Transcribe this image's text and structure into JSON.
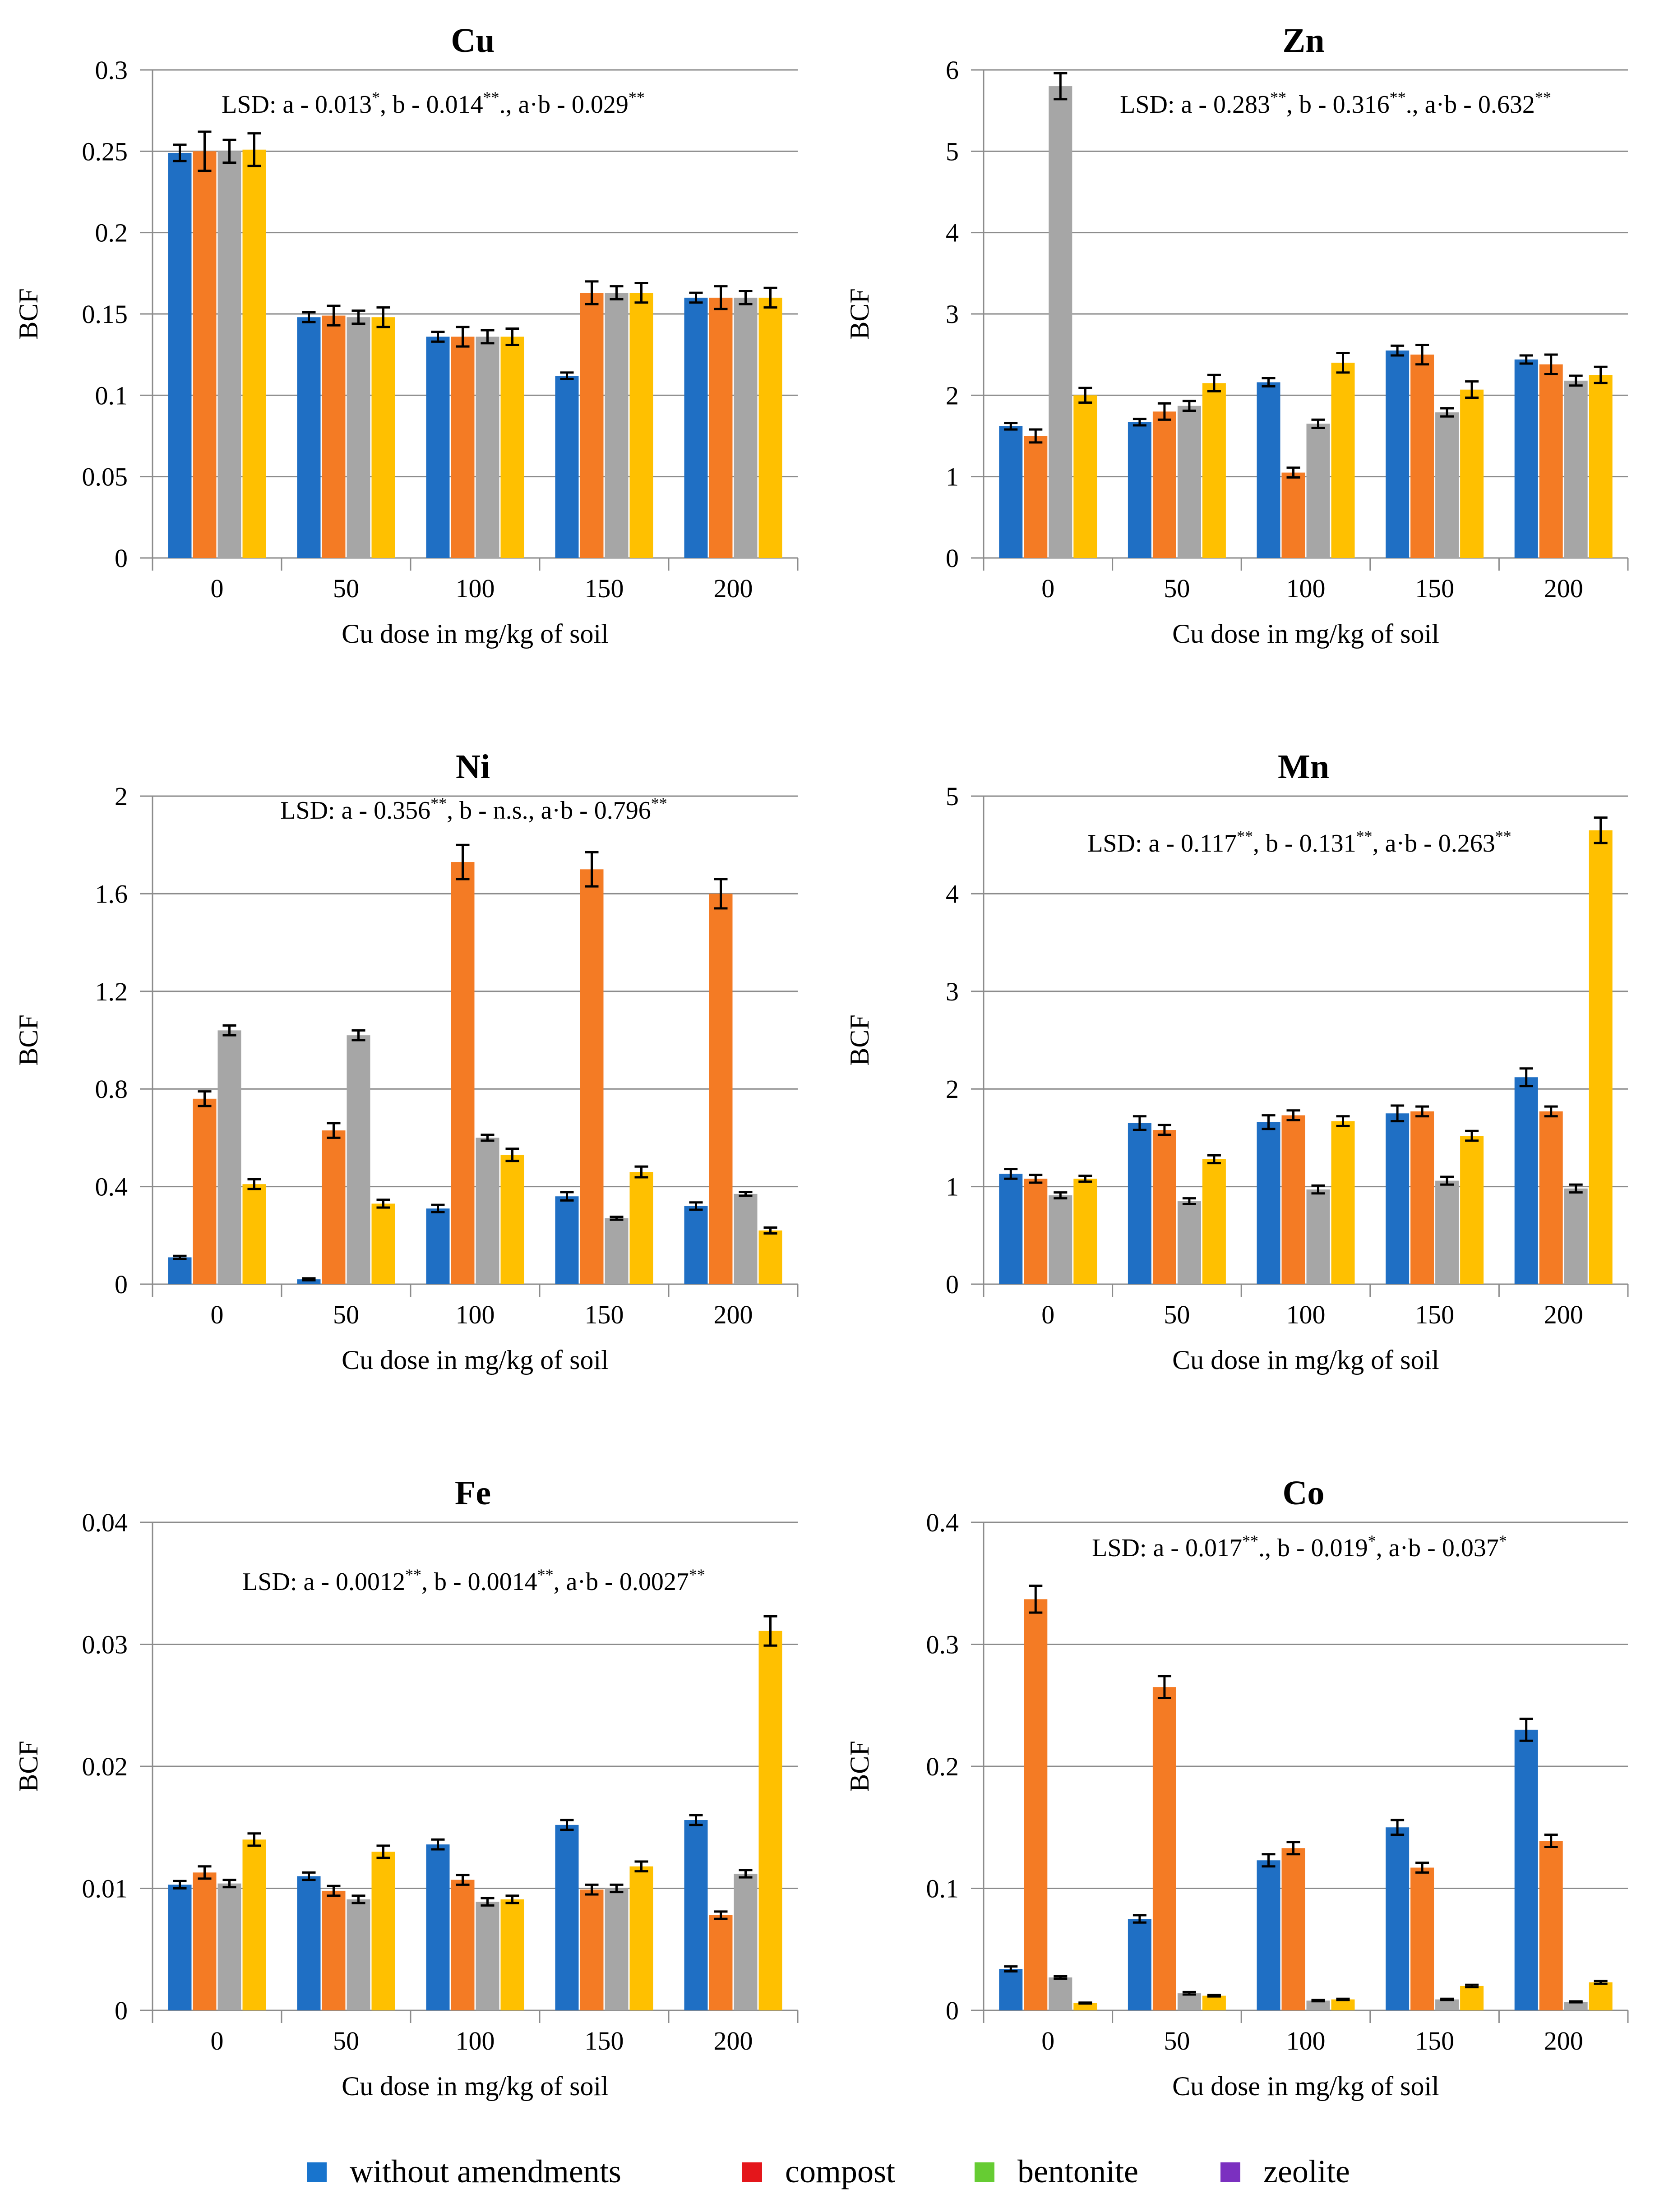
{
  "legend": {
    "items": [
      {
        "label": "without amendments",
        "swatch_color": "#1874CD"
      },
      {
        "label": "compost",
        "swatch_color": "#E4161B"
      },
      {
        "label": "bentonite",
        "swatch_color": "#66CC33"
      },
      {
        "label": "zeolite",
        "swatch_color": "#7B30C0"
      }
    ]
  },
  "series_colors": [
    "#1F6FC4",
    "#F47B24",
    "#A6A6A6",
    "#FFC000"
  ],
  "chart_data": [
    {
      "type": "bar",
      "title": "Cu",
      "xlabel": "Cu dose in mg/kg of soil",
      "ylabel": "BCF",
      "ylim": [
        0,
        0.3
      ],
      "yticks": [
        "0",
        "0.05",
        "0.1",
        "0.15",
        "0.2",
        "0.25",
        "0.3"
      ],
      "categories": [
        "0",
        "50",
        "100",
        "150",
        "200"
      ],
      "lsd": [
        {
          "text": "LSD: a - 0.013"
        },
        {
          "text": "*",
          "sup": true
        },
        {
          "text": ", b - 0.014"
        },
        {
          "text": "**",
          "sup": true
        },
        {
          "text": "., a·b - 0.029"
        },
        {
          "text": "**",
          "sup": true
        }
      ],
      "series": [
        {
          "name": "without amendments",
          "values": [
            0.249,
            0.148,
            0.136,
            0.112,
            0.16
          ],
          "errors": [
            0.005,
            0.003,
            0.003,
            0.002,
            0.003
          ]
        },
        {
          "name": "compost",
          "values": [
            0.25,
            0.149,
            0.136,
            0.163,
            0.16
          ],
          "errors": [
            0.012,
            0.006,
            0.006,
            0.007,
            0.007
          ]
        },
        {
          "name": "bentonite",
          "values": [
            0.25,
            0.148,
            0.136,
            0.163,
            0.16
          ],
          "errors": [
            0.007,
            0.004,
            0.004,
            0.004,
            0.004
          ]
        },
        {
          "name": "zeolite",
          "values": [
            0.251,
            0.148,
            0.136,
            0.163,
            0.16
          ],
          "errors": [
            0.01,
            0.006,
            0.005,
            0.006,
            0.006
          ]
        }
      ]
    },
    {
      "type": "bar",
      "title": "Zn",
      "xlabel": "Cu dose in mg/kg of soil",
      "ylabel": "BCF",
      "ylim": [
        0,
        6
      ],
      "yticks": [
        "0",
        "1",
        "2",
        "3",
        "4",
        "5",
        "6"
      ],
      "categories": [
        "0",
        "50",
        "100",
        "150",
        "200"
      ],
      "lsd": [
        {
          "text": "LSD: a - 0.283"
        },
        {
          "text": "**",
          "sup": true
        },
        {
          "text": ", b - 0.316"
        },
        {
          "text": "**",
          "sup": true
        },
        {
          "text": "., a·b - 0.632"
        },
        {
          "text": "**",
          "sup": true
        }
      ],
      "series": [
        {
          "name": "without amendments",
          "values": [
            1.62,
            1.67,
            2.16,
            2.55,
            2.44
          ],
          "errors": [
            0.04,
            0.04,
            0.05,
            0.06,
            0.05
          ]
        },
        {
          "name": "compost",
          "values": [
            1.5,
            1.8,
            1.05,
            2.5,
            2.38
          ],
          "errors": [
            0.08,
            0.1,
            0.06,
            0.12,
            0.12
          ]
        },
        {
          "name": "bentonite",
          "values": [
            5.8,
            1.87,
            1.65,
            1.79,
            2.18
          ],
          "errors": [
            0.16,
            0.06,
            0.05,
            0.05,
            0.06
          ]
        },
        {
          "name": "zeolite",
          "values": [
            2.0,
            2.15,
            2.4,
            2.07,
            2.25
          ],
          "errors": [
            0.09,
            0.1,
            0.12,
            0.1,
            0.1
          ]
        }
      ]
    },
    {
      "type": "bar",
      "title": "Ni",
      "xlabel": "Cu dose in mg/kg of soil",
      "ylabel": "BCF",
      "ylim": [
        0,
        2
      ],
      "yticks": [
        "0",
        "0.4",
        "0.8",
        "1.2",
        "1.6",
        "2"
      ],
      "categories": [
        "0",
        "50",
        "100",
        "150",
        "200"
      ],
      "lsd": [
        {
          "text": "LSD: a - 0.356"
        },
        {
          "text": "**",
          "sup": true
        },
        {
          "text": ", b - n.s., a·b - 0.796"
        },
        {
          "text": "**",
          "sup": true
        }
      ],
      "series": [
        {
          "name": "without amendments",
          "values": [
            0.11,
            0.02,
            0.31,
            0.36,
            0.32
          ],
          "errors": [
            0.006,
            0.004,
            0.015,
            0.017,
            0.015
          ]
        },
        {
          "name": "compost",
          "values": [
            0.76,
            0.63,
            1.73,
            1.7,
            1.6
          ],
          "errors": [
            0.03,
            0.03,
            0.07,
            0.07,
            0.06
          ]
        },
        {
          "name": "bentonite",
          "values": [
            1.04,
            1.02,
            0.6,
            0.27,
            0.37
          ],
          "errors": [
            0.02,
            0.02,
            0.012,
            0.006,
            0.008
          ]
        },
        {
          "name": "zeolite",
          "values": [
            0.41,
            0.33,
            0.53,
            0.46,
            0.22
          ],
          "errors": [
            0.02,
            0.016,
            0.025,
            0.022,
            0.012
          ]
        }
      ]
    },
    {
      "type": "bar",
      "title": "Mn",
      "xlabel": "Cu dose in mg/kg of soil",
      "ylabel": "BCF",
      "ylim": [
        0,
        5
      ],
      "yticks": [
        "0",
        "1",
        "2",
        "3",
        "4",
        "5"
      ],
      "categories": [
        "0",
        "50",
        "100",
        "150",
        "200"
      ],
      "lsd": [
        {
          "text": "LSD: a - 0.117"
        },
        {
          "text": "**",
          "sup": true
        },
        {
          "text": ", b - 0.131"
        },
        {
          "text": "**",
          "sup": true
        },
        {
          "text": ", a·b - 0.263"
        },
        {
          "text": "**",
          "sup": true
        }
      ],
      "series": [
        {
          "name": "without amendments",
          "values": [
            1.13,
            1.65,
            1.66,
            1.75,
            2.12
          ],
          "errors": [
            0.05,
            0.07,
            0.07,
            0.08,
            0.09
          ]
        },
        {
          "name": "compost",
          "values": [
            1.08,
            1.58,
            1.73,
            1.77,
            1.77
          ],
          "errors": [
            0.04,
            0.05,
            0.05,
            0.05,
            0.05
          ]
        },
        {
          "name": "bentonite",
          "values": [
            0.91,
            0.85,
            0.97,
            1.06,
            0.98
          ],
          "errors": [
            0.03,
            0.03,
            0.04,
            0.04,
            0.04
          ]
        },
        {
          "name": "zeolite",
          "values": [
            1.08,
            1.28,
            1.67,
            1.52,
            4.65
          ],
          "errors": [
            0.03,
            0.04,
            0.05,
            0.05,
            0.13
          ]
        }
      ]
    },
    {
      "type": "bar",
      "title": "Fe",
      "xlabel": "Cu dose in mg/kg of soil",
      "ylabel": "BCF",
      "ylim": [
        0,
        0.04
      ],
      "yticks": [
        "0",
        "0.01",
        "0.02",
        "0.03",
        "0.04"
      ],
      "categories": [
        "0",
        "50",
        "100",
        "150",
        "200"
      ],
      "lsd": [
        {
          "text": "LSD: a - 0.0012"
        },
        {
          "text": "**",
          "sup": true
        },
        {
          "text": ", b - 0.0014"
        },
        {
          "text": "**",
          "sup": true
        },
        {
          "text": ", a·b - 0.0027"
        },
        {
          "text": "**",
          "sup": true
        }
      ],
      "series": [
        {
          "name": "without amendments",
          "values": [
            0.0103,
            0.011,
            0.0136,
            0.0152,
            0.0156
          ],
          "errors": [
            0.0003,
            0.0003,
            0.0004,
            0.0004,
            0.0004
          ]
        },
        {
          "name": "compost",
          "values": [
            0.0113,
            0.0098,
            0.0107,
            0.0099,
            0.0078
          ],
          "errors": [
            0.0005,
            0.0004,
            0.0004,
            0.0004,
            0.0003
          ]
        },
        {
          "name": "bentonite",
          "values": [
            0.0104,
            0.0091,
            0.0089,
            0.01,
            0.0112
          ],
          "errors": [
            0.0003,
            0.0003,
            0.0003,
            0.0003,
            0.0003
          ]
        },
        {
          "name": "zeolite",
          "values": [
            0.014,
            0.013,
            0.0091,
            0.0118,
            0.0311
          ],
          "errors": [
            0.0005,
            0.0005,
            0.0003,
            0.0004,
            0.0012
          ]
        }
      ]
    },
    {
      "type": "bar",
      "title": "Co",
      "xlabel": "Cu dose in mg/kg of soil",
      "ylabel": "BCF",
      "ylim": [
        0,
        0.4
      ],
      "yticks": [
        "0",
        "0.1",
        "0.2",
        "0.3",
        "0.4"
      ],
      "categories": [
        "0",
        "50",
        "100",
        "150",
        "200"
      ],
      "lsd": [
        {
          "text": "LSD: a - 0.017"
        },
        {
          "text": "**",
          "sup": true
        },
        {
          "text": "., b - 0.019"
        },
        {
          "text": "*",
          "sup": true
        },
        {
          "text": ", a·b - 0.037"
        },
        {
          "text": "*",
          "sup": true
        }
      ],
      "series": [
        {
          "name": "without amendments",
          "values": [
            0.034,
            0.075,
            0.123,
            0.15,
            0.23
          ],
          "errors": [
            0.002,
            0.003,
            0.005,
            0.006,
            0.009
          ]
        },
        {
          "name": "compost",
          "values": [
            0.337,
            0.265,
            0.133,
            0.117,
            0.139
          ],
          "errors": [
            0.011,
            0.009,
            0.005,
            0.004,
            0.005
          ]
        },
        {
          "name": "bentonite",
          "values": [
            0.027,
            0.014,
            0.008,
            0.009,
            0.007
          ],
          "errors": [
            0.001,
            0.001,
            0.0005,
            0.0005,
            0.0004
          ]
        },
        {
          "name": "zeolite",
          "values": [
            0.006,
            0.012,
            0.009,
            0.02,
            0.023
          ],
          "errors": [
            0.0004,
            0.0006,
            0.0005,
            0.001,
            0.0012
          ]
        }
      ]
    }
  ]
}
